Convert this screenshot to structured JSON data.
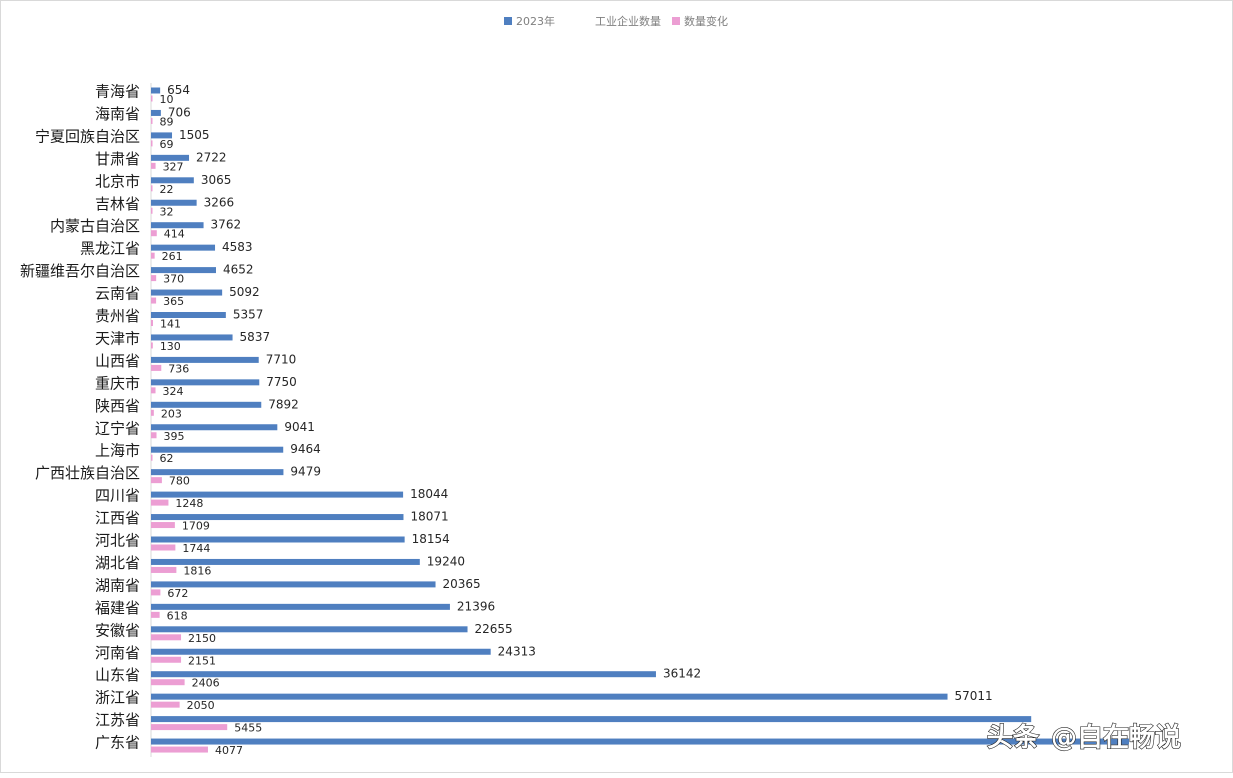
{
  "chart_data": {
    "type": "bar",
    "orientation": "horizontal",
    "title": "工业企业数量",
    "categories": [
      "青海省",
      "海南省",
      "宁夏回族自治区",
      "甘肃省",
      "北京市",
      "吉林省",
      "内蒙古自治区",
      "黑龙江省",
      "新疆维吾尔自治区",
      "云南省",
      "贵州省",
      "天津市",
      "山西省",
      "重庆市",
      "陕西省",
      "辽宁省",
      "上海市",
      "广西壮族自治区",
      "四川省",
      "江西省",
      "河北省",
      "湖北省",
      "湖南省",
      "福建省",
      "安徽省",
      "河南省",
      "山东省",
      "浙江省",
      "江苏省",
      "广东省"
    ],
    "series": [
      {
        "name": "2023年",
        "color": "#4f7fc0",
        "values": [
          654,
          706,
          1505,
          2722,
          3065,
          3266,
          3762,
          4583,
          4652,
          5092,
          5357,
          5837,
          7710,
          7750,
          7892,
          9041,
          9464,
          9479,
          18044,
          18071,
          18154,
          19240,
          20365,
          21396,
          22655,
          24313,
          36142,
          57011,
          63000,
          70000
        ]
      },
      {
        "name": "数量变化",
        "color": "#ec9ed3",
        "values": [
          10,
          89,
          69,
          327,
          22,
          32,
          414,
          261,
          370,
          365,
          141,
          130,
          736,
          324,
          203,
          395,
          62,
          780,
          1248,
          1709,
          1744,
          1816,
          672,
          618,
          2150,
          2151,
          2406,
          2050,
          5455,
          4077
        ]
      }
    ],
    "data_labels_main": [
      "654",
      "706",
      "1505",
      "2722",
      "3065",
      "3266",
      "3762",
      "4583",
      "4652",
      "5092",
      "5357",
      "5837",
      "7710",
      "7750",
      "7892",
      "9041",
      "9464",
      "9479",
      "18044",
      "18071",
      "18154",
      "19240",
      "20365",
      "21396",
      "22655",
      "24313",
      "36142",
      "57011",
      "",
      ""
    ],
    "data_labels_change": [
      "10",
      "89",
      "69",
      "327",
      "22",
      "32",
      "414",
      "261",
      "370",
      "365",
      "141",
      "130",
      "736",
      "324",
      "203",
      "395",
      "62",
      "780",
      "1248",
      "1709",
      "1744",
      "1816",
      "672",
      "618",
      "2150",
      "2151",
      "2406",
      "2050",
      "5455",
      "4077"
    ],
    "xlim": [
      0,
      70000
    ],
    "grid": false,
    "legend_position": "top"
  },
  "legend": {
    "series_1": "2023年",
    "title": "工业企业数量",
    "series_2": "数量变化"
  },
  "watermark": {
    "brand": "头条",
    "handle": "@自在畅说"
  }
}
